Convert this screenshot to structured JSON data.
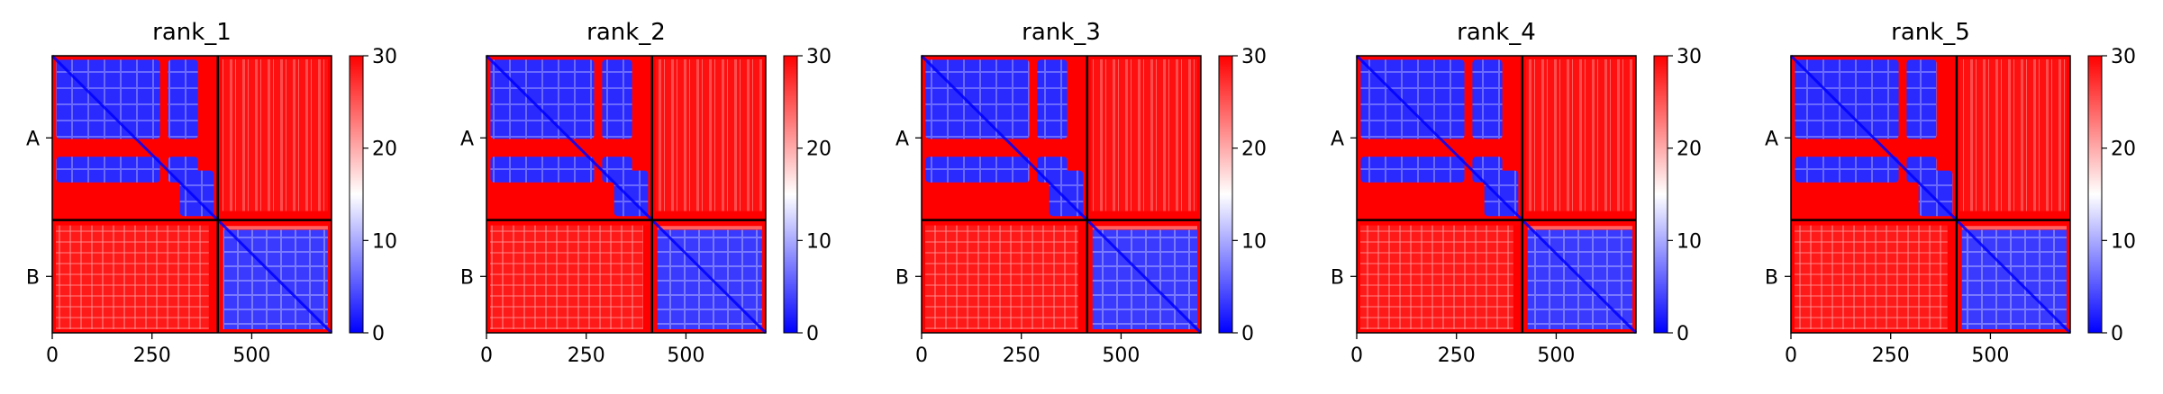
{
  "chart_data": [
    {
      "type": "heatmap",
      "title": "rank_1",
      "x_ticks": [
        0,
        250,
        500
      ],
      "x_range": [
        0,
        700
      ],
      "y_tick_labels": [
        "A",
        "B"
      ],
      "chain_boundary": 415,
      "colorbar": {
        "range": [
          0,
          30
        ],
        "ticks": [
          "0",
          "10",
          "20",
          "30"
        ],
        "colormap": "bwr"
      }
    },
    {
      "type": "heatmap",
      "title": "rank_2",
      "x_ticks": [
        0,
        250,
        500
      ],
      "x_range": [
        0,
        700
      ],
      "y_tick_labels": [
        "A",
        "B"
      ],
      "chain_boundary": 415,
      "colorbar": {
        "range": [
          0,
          30
        ],
        "ticks": [
          "0",
          "10",
          "20",
          "30"
        ],
        "colormap": "bwr"
      }
    },
    {
      "type": "heatmap",
      "title": "rank_3",
      "x_ticks": [
        0,
        250,
        500
      ],
      "x_range": [
        0,
        700
      ],
      "y_tick_labels": [
        "A",
        "B"
      ],
      "chain_boundary": 415,
      "colorbar": {
        "range": [
          0,
          30
        ],
        "ticks": [
          "0",
          "10",
          "20",
          "30"
        ],
        "colormap": "bwr"
      }
    },
    {
      "type": "heatmap",
      "title": "rank_4",
      "x_ticks": [
        0,
        250,
        500
      ],
      "x_range": [
        0,
        700
      ],
      "y_tick_labels": [
        "A",
        "B"
      ],
      "chain_boundary": 415,
      "colorbar": {
        "range": [
          0,
          30
        ],
        "ticks": [
          "0",
          "10",
          "20",
          "30"
        ],
        "colormap": "bwr"
      }
    },
    {
      "type": "heatmap",
      "title": "rank_5",
      "x_ticks": [
        0,
        250,
        500
      ],
      "x_range": [
        0,
        700
      ],
      "y_tick_labels": [
        "A",
        "B"
      ],
      "chain_boundary": 415,
      "colorbar": {
        "range": [
          0,
          30
        ],
        "ticks": [
          "0",
          "10",
          "20",
          "30"
        ],
        "colormap": "bwr"
      }
    }
  ],
  "colors": {
    "high": "#ff0000",
    "mid": "#ffffff",
    "low": "#0000ff"
  }
}
